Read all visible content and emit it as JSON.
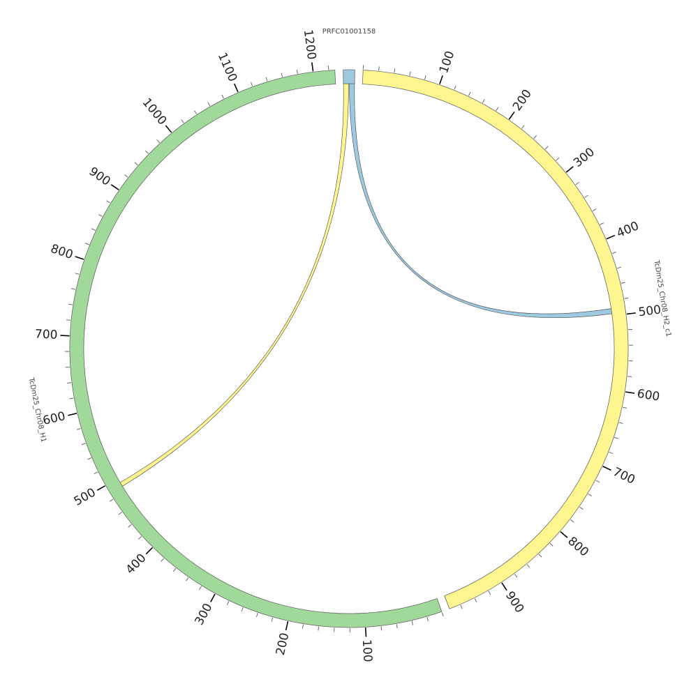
{
  "chart_data": {
    "type": "chord",
    "minor_tick_step": 20,
    "segments": [
      {
        "name": "PRFC01001158",
        "length": 15,
        "color": "#9ecae1",
        "ticks": []
      },
      {
        "name": "TcDm25_Chr08_H2_c1",
        "length": 975,
        "color": "#fff68f",
        "ticks": [
          100,
          200,
          300,
          400,
          500,
          600,
          700,
          800,
          900
        ]
      },
      {
        "name": "TcDm25_Chr08_H1",
        "length": 1228,
        "color": "#a1d99b",
        "ticks": [
          100,
          200,
          300,
          400,
          500,
          600,
          700,
          800,
          900,
          1000,
          1100,
          1200
        ]
      }
    ],
    "links": [
      {
        "color": "#9ecae1",
        "source": {
          "segment": "PRFC01001158",
          "start": 8,
          "end": 15
        },
        "target": {
          "segment": "TcDm25_Chr08_H2_c1",
          "start": 490,
          "end": 497
        }
      },
      {
        "color": "#fff68f",
        "source": {
          "segment": "PRFC01001158",
          "start": 0,
          "end": 7
        },
        "target": {
          "segment": "TcDm25_Chr08_H1",
          "start": 488,
          "end": 494
        }
      }
    ]
  }
}
